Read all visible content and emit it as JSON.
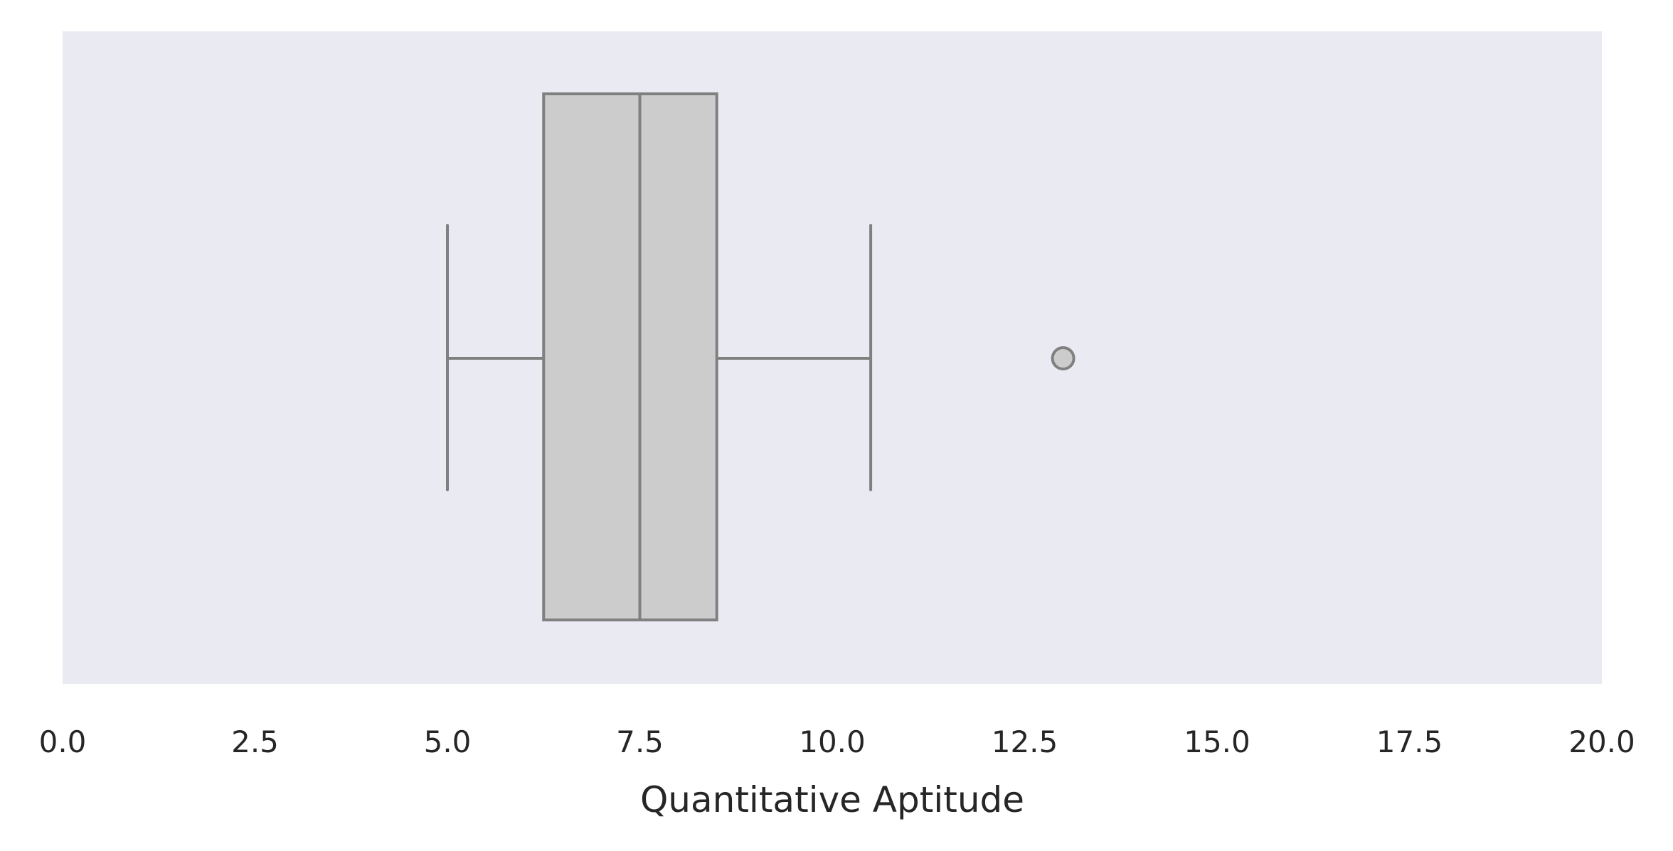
{
  "chart_data": {
    "type": "box",
    "orientation": "horizontal",
    "xlabel": "Quantitative Aptitude",
    "ylabel": "",
    "xlim": [
      0,
      20
    ],
    "xticks": [
      0,
      2.5,
      5,
      7.5,
      10,
      12.5,
      15,
      17.5,
      20
    ],
    "tick_labels": [
      "0.0",
      "2.5",
      "5.0",
      "7.5",
      "10.0",
      "12.5",
      "15.0",
      "17.5",
      "20.0"
    ],
    "grid": false,
    "box": {
      "whisker_low": 5.0,
      "q1": 6.25,
      "median": 7.5,
      "q3": 8.5,
      "whisker_high": 10.5,
      "outliers": [
        13.0
      ]
    },
    "colors": {
      "plot_background": "#eaeaf2",
      "box_fill": "#cccccc",
      "line": "#808080",
      "text": "#262626"
    }
  }
}
